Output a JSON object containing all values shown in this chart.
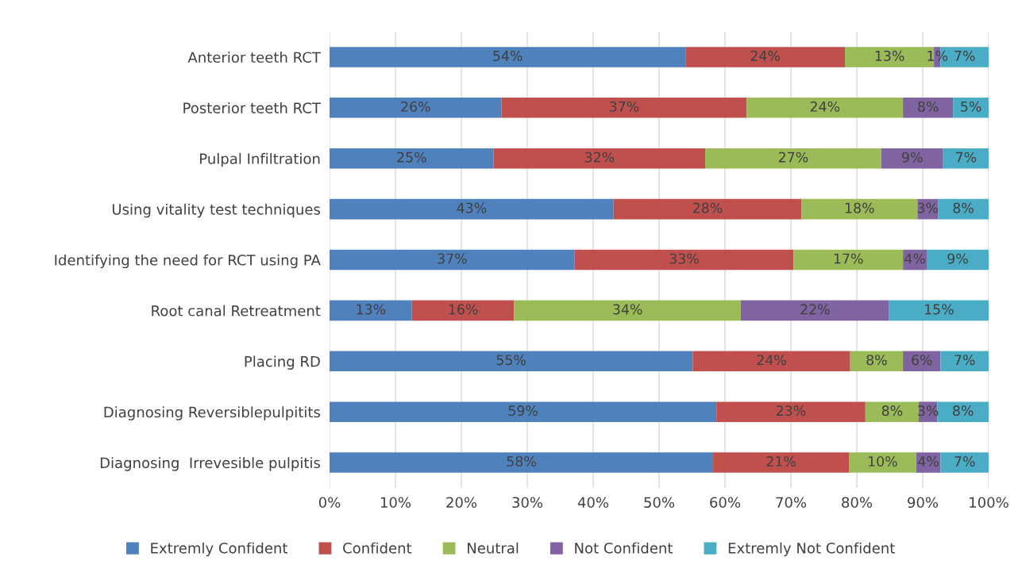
{
  "chart_data": {
    "type": "bar",
    "orientation": "horizontal",
    "stacked": true,
    "categories": [
      "Anterior teeth RCT",
      "Posterior teeth RCT",
      "Pulpal Infiltration",
      "Using vitality test techniques",
      "Identifying the need for RCT using PA",
      "Root canal Retreatment",
      "Placing RD",
      "Diagnosing Reversiblepulpitits",
      "Diagnosing  Irrevesible pulpitis"
    ],
    "series": [
      {
        "name": "Extremly Confident",
        "color": "#4f81bd",
        "values": [
          54.0,
          26.1,
          24.9,
          43.1,
          37.2,
          12.5,
          55.1,
          58.7,
          58.2
        ],
        "value_labels": [
          "54%",
          "26%",
          "25%",
          "43%",
          "37%",
          "13%",
          "55%",
          "59%",
          "58%"
        ]
      },
      {
        "name": "Confident",
        "color": "#c0504d",
        "values": [
          24.2,
          37.2,
          32.1,
          28.5,
          33.2,
          15.5,
          23.9,
          22.6,
          20.6
        ],
        "value_labels": [
          "24%",
          "37%",
          "32%",
          "28%",
          "33%",
          "16%",
          "24%",
          "23%",
          "21%"
        ]
      },
      {
        "name": "Neutral",
        "color": "#9bbb59",
        "values": [
          13.5,
          23.7,
          26.7,
          17.6,
          16.6,
          34.4,
          8.0,
          8.1,
          10.2
        ],
        "value_labels": [
          "13%",
          "24%",
          "27%",
          "18%",
          "17%",
          "34%",
          "8%",
          "8%",
          "10%"
        ]
      },
      {
        "name": "Not Confident",
        "color": "#8064a2",
        "values": [
          1.0,
          7.6,
          9.4,
          3.1,
          3.6,
          22.5,
          5.7,
          2.8,
          3.7
        ],
        "value_labels": [
          "1%",
          "8%",
          "9%",
          "3%",
          "4%",
          "22%",
          "6%",
          "3%",
          "4%"
        ]
      },
      {
        "name": "Extremly Not Confident",
        "color": "#4bacc6",
        "values": [
          7.3,
          5.4,
          6.9,
          7.7,
          9.4,
          15.1,
          7.3,
          7.8,
          7.3
        ],
        "value_labels": [
          "7%",
          "5%",
          "7%",
          "8%",
          "9%",
          "15%",
          "7%",
          "8%",
          "7%"
        ]
      }
    ],
    "xlim": [
      0,
      100
    ],
    "xticks": [
      {
        "value": 0,
        "label": "0%"
      },
      {
        "value": 10,
        "label": "10%"
      },
      {
        "value": 20,
        "label": "20%"
      },
      {
        "value": 30,
        "label": "30%"
      },
      {
        "value": 40,
        "label": "40%"
      },
      {
        "value": 50,
        "label": "50%"
      },
      {
        "value": 60,
        "label": "60%"
      },
      {
        "value": 70,
        "label": "70%"
      },
      {
        "value": 80,
        "label": "80%"
      },
      {
        "value": 90,
        "label": "90%"
      },
      {
        "value": 100,
        "label": "100%"
      }
    ],
    "grid": "x",
    "legend": "bottom"
  }
}
